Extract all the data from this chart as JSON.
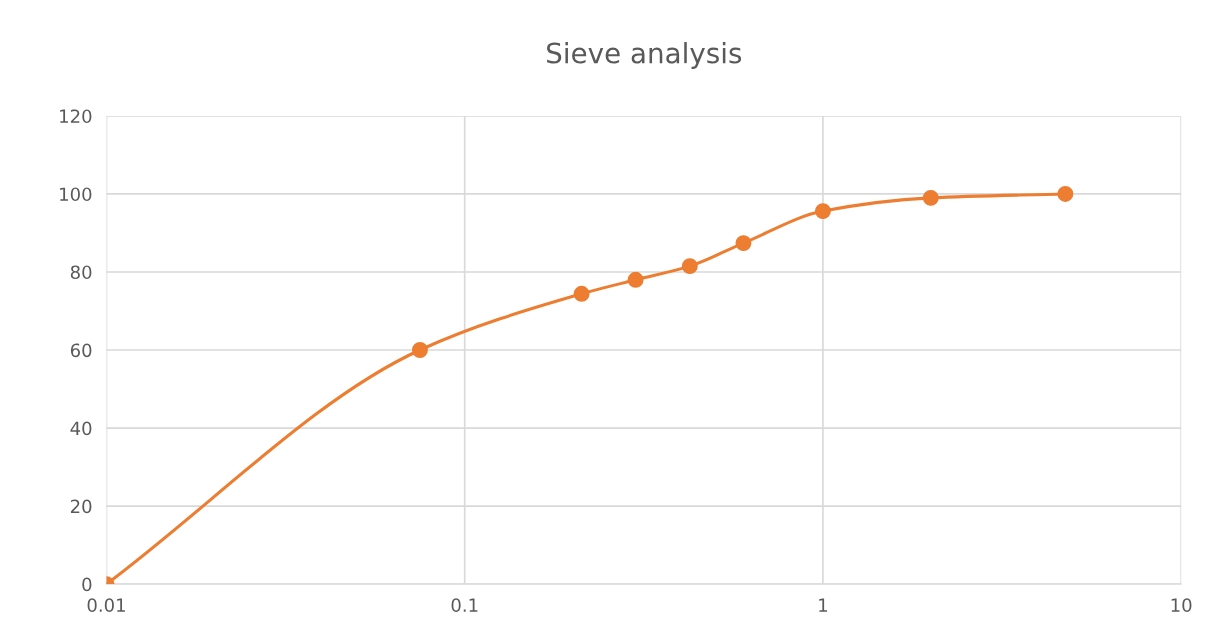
{
  "chart_data": {
    "type": "line",
    "title": "Sieve analysis",
    "series": [
      {
        "color": "#ed7d31",
        "x": [
          0.01,
          0.075,
          0.212,
          0.3,
          0.425,
          0.6,
          1,
          2,
          4.75
        ],
        "values": [
          0,
          60,
          74.4,
          78,
          81.5,
          87.4,
          95.6,
          99,
          100
        ]
      }
    ],
    "log": "x",
    "xlim": [
      0.01,
      10
    ],
    "xticks": [
      0.01,
      0.1,
      1,
      10
    ],
    "ylim": [
      0,
      120
    ],
    "yticks": [
      0,
      20,
      40,
      60,
      80,
      100,
      120
    ],
    "grid": true,
    "marker": "circle",
    "line_style": "solid"
  }
}
